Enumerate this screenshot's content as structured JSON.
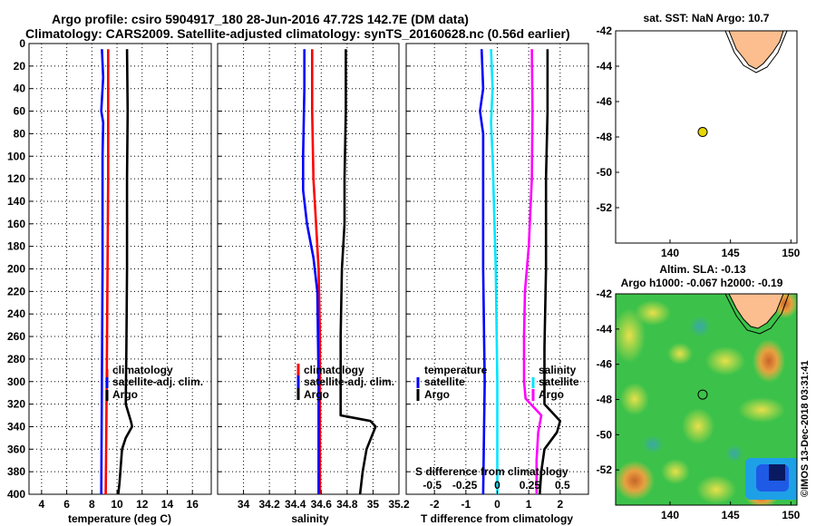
{
  "header": {
    "title_line1": "Argo profile: csiro 5904917_180 28-Jun-2016 47.72S 142.7E (DM data)",
    "title_line2": "Climatology: CARS2009. Satellite-adjusted climatology: synTS_20160628.nc (0.56d earlier)"
  },
  "colors": {
    "argo": "#000000",
    "climatology": "#ff0000",
    "satellite": "#0000ff",
    "s_satellite": "#00e5ff",
    "s_argo": "#ff00ff",
    "land": "#fcbe8e",
    "marker": "#e8d800"
  },
  "chart_data": [
    {
      "type": "line",
      "id": "temperature",
      "xlabel": "temperature (deg C)",
      "ylabel": "depth",
      "xlim": [
        3,
        17.5
      ],
      "ylim": [
        400,
        0
      ],
      "xticks": [
        4,
        6,
        8,
        10,
        12,
        14,
        16
      ],
      "yticks": [
        0,
        20,
        40,
        60,
        80,
        100,
        120,
        140,
        160,
        180,
        200,
        220,
        240,
        260,
        280,
        300,
        320,
        340,
        360,
        380,
        400
      ],
      "legend": [
        "climatology",
        "satellite-adj. clim.",
        "Argo"
      ],
      "series": [
        {
          "name": "climatology",
          "color": "#ff0000",
          "points": [
            [
              9.3,
              5
            ],
            [
              9.3,
              60
            ],
            [
              9.3,
              120
            ],
            [
              9.25,
              200
            ],
            [
              9.2,
              280
            ],
            [
              9.15,
              340
            ],
            [
              9.1,
              400
            ]
          ]
        },
        {
          "name": "satellite-adj. clim.",
          "color": "#0000ff",
          "points": [
            [
              8.8,
              5
            ],
            [
              8.9,
              30
            ],
            [
              8.75,
              60
            ],
            [
              8.9,
              70
            ],
            [
              8.85,
              100
            ],
            [
              8.85,
              200
            ],
            [
              8.8,
              300
            ],
            [
              8.75,
              400
            ]
          ]
        },
        {
          "name": "Argo",
          "color": "#000000",
          "points": [
            [
              10.8,
              5
            ],
            [
              10.85,
              60
            ],
            [
              10.8,
              120
            ],
            [
              10.8,
              200
            ],
            [
              10.75,
              270
            ],
            [
              10.7,
              320
            ],
            [
              11.1,
              335
            ],
            [
              11.2,
              340
            ],
            [
              10.7,
              350
            ],
            [
              10.4,
              360
            ],
            [
              10.3,
              375
            ],
            [
              10.2,
              390
            ],
            [
              10.1,
              400
            ]
          ]
        }
      ]
    },
    {
      "type": "line",
      "id": "salinity",
      "xlabel": "salinity",
      "ylabel": "depth",
      "xlim": [
        33.8,
        35.2
      ],
      "ylim": [
        400,
        0
      ],
      "xticks": [
        34,
        34.2,
        34.4,
        34.6,
        34.8,
        35,
        35.2
      ],
      "xtick_labels": [
        "34",
        "34.2",
        "34.4",
        "34.6",
        "34.8",
        "35",
        "35.2"
      ],
      "legend": [
        "climatology",
        "satellite-adj. clim.",
        "Argo"
      ],
      "series": [
        {
          "name": "climatology",
          "color": "#ff0000",
          "points": [
            [
              34.53,
              5
            ],
            [
              34.53,
              60
            ],
            [
              34.54,
              120
            ],
            [
              34.56,
              160
            ],
            [
              34.58,
              200
            ],
            [
              34.59,
              260
            ],
            [
              34.59,
              320
            ],
            [
              34.59,
              400
            ]
          ]
        },
        {
          "name": "satellite-adj. clim.",
          "color": "#0000ff",
          "points": [
            [
              34.47,
              5
            ],
            [
              34.47,
              40
            ],
            [
              34.46,
              100
            ],
            [
              34.46,
              130
            ],
            [
              34.49,
              160
            ],
            [
              34.54,
              190
            ],
            [
              34.57,
              220
            ],
            [
              34.58,
              300
            ],
            [
              34.58,
              400
            ]
          ]
        },
        {
          "name": "Argo",
          "color": "#000000",
          "points": [
            [
              34.79,
              5
            ],
            [
              34.79,
              60
            ],
            [
              34.78,
              120
            ],
            [
              34.78,
              160
            ],
            [
              34.76,
              200
            ],
            [
              34.75,
              260
            ],
            [
              34.75,
              300
            ],
            [
              34.75,
              330
            ],
            [
              34.98,
              335
            ],
            [
              35.02,
              340
            ],
            [
              34.95,
              360
            ],
            [
              34.92,
              380
            ],
            [
              34.9,
              400
            ]
          ]
        }
      ]
    },
    {
      "type": "line",
      "id": "difference",
      "xlabel": "T difference from climatology",
      "ylabel": "depth",
      "xlim": [
        -2.9,
        2.9
      ],
      "ylim": [
        400,
        0
      ],
      "xticks": [
        -2,
        -1,
        0,
        1,
        2
      ],
      "top_axis_label": "S difference from climatology",
      "top_ticks": [
        -0.5,
        -0.25,
        0,
        0.25,
        0.5
      ],
      "top_tick_labels": [
        "-0.5",
        "-0.25",
        "0",
        "0.25",
        "0.5"
      ],
      "legend_left_title": "temperature",
      "legend_left": [
        "satellite",
        "Argo"
      ],
      "legend_right_title": "salinity",
      "legend_right": [
        "satellite",
        "Argo"
      ],
      "series": [
        {
          "name": "T satellite",
          "color": "#0000ff",
          "points": [
            [
              -0.5,
              5
            ],
            [
              -0.45,
              40
            ],
            [
              -0.55,
              60
            ],
            [
              -0.45,
              80
            ],
            [
              -0.45,
              200
            ],
            [
              -0.4,
              300
            ],
            [
              -0.45,
              400
            ]
          ]
        },
        {
          "name": "S satellite",
          "color": "#00e5ff",
          "points": [
            [
              -0.2,
              5
            ],
            [
              -0.15,
              40
            ],
            [
              -0.2,
              70
            ],
            [
              -0.15,
              100
            ],
            [
              -0.05,
              200
            ],
            [
              0,
              300
            ],
            [
              0,
              400
            ]
          ]
        },
        {
          "name": "T Argo",
          "color": "#000000",
          "points": [
            [
              1.6,
              5
            ],
            [
              1.6,
              60
            ],
            [
              1.55,
              120
            ],
            [
              1.55,
              200
            ],
            [
              1.5,
              270
            ],
            [
              1.5,
              320
            ],
            [
              2.0,
              335
            ],
            [
              1.9,
              345
            ],
            [
              1.5,
              360
            ],
            [
              1.4,
              380
            ],
            [
              1.35,
              400
            ]
          ]
        },
        {
          "name": "S Argo",
          "color": "#ff00ff",
          "points": [
            [
              1.1,
              5
            ],
            [
              1.12,
              60
            ],
            [
              1.1,
              120
            ],
            [
              1.0,
              180
            ],
            [
              0.88,
              220
            ],
            [
              0.85,
              260
            ],
            [
              0.85,
              300
            ],
            [
              0.9,
              315
            ],
            [
              1.4,
              330
            ],
            [
              1.3,
              345
            ],
            [
              1.25,
              370
            ],
            [
              1.25,
              400
            ]
          ]
        }
      ]
    }
  ],
  "map_top": {
    "title": "sat. SST: NaN Argo: 10.7",
    "xticks": [
      140,
      145,
      150
    ],
    "yticks": [
      -42,
      -44,
      -46,
      -48,
      -50,
      -52
    ],
    "xlim": [
      135.5,
      150.5
    ],
    "ylim": [
      -54,
      -42
    ],
    "argo_lon": 142.7,
    "argo_lat": -47.72
  },
  "map_bottom": {
    "title_line1": "Altim. SLA: -0.13",
    "title_line2": "Argo h1000: -0.067 h2000: -0.19",
    "xticks": [
      140,
      145,
      150
    ],
    "yticks": [
      -42,
      -44,
      -46,
      -48,
      -50,
      -52
    ],
    "xlim": [
      135.5,
      150.5
    ],
    "ylim": [
      -54,
      -42
    ],
    "argo_lon": 142.7,
    "argo_lat": -47.72,
    "watermark": "©IMOS 13-Dec-2018 03:31:41"
  }
}
